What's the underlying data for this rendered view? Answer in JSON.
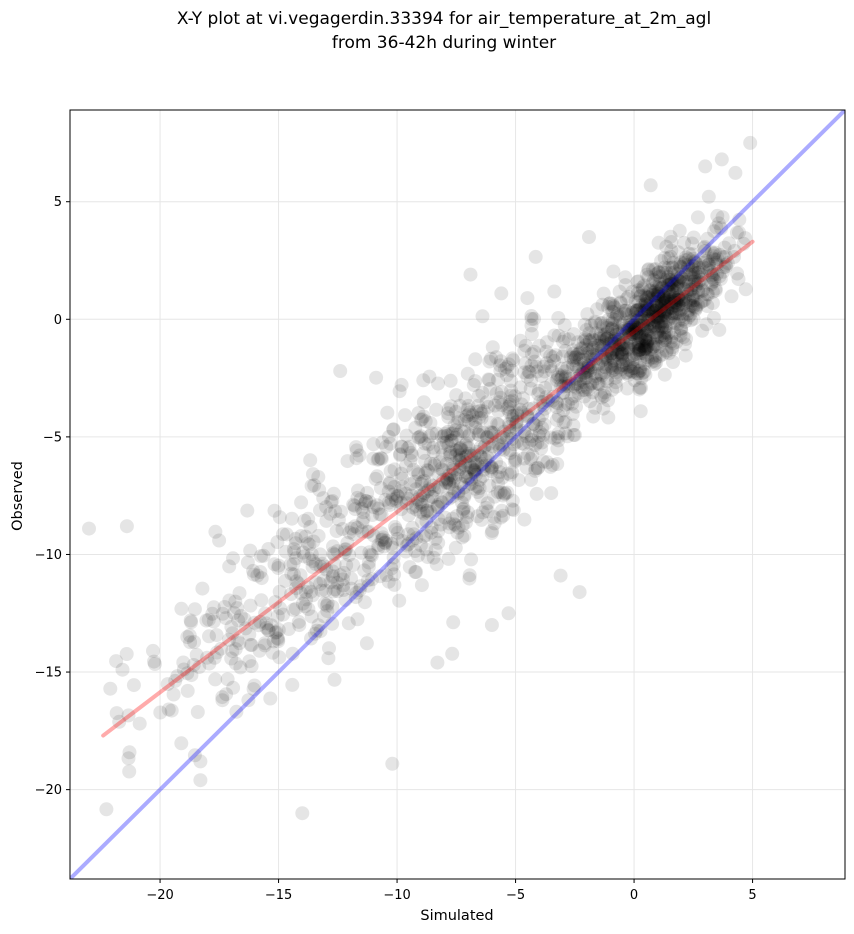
{
  "chart_data": {
    "type": "scatter",
    "title": [
      "X-Y plot at vi.vegagerdin.33394 for air_temperature_at_2m_agl",
      "from 36-42h during winter"
    ],
    "xlabel": "Simulated",
    "ylabel": "Observed",
    "xlim": [
      -23.8,
      8.9
    ],
    "ylim": [
      -23.8,
      8.9
    ],
    "xticks": [
      -20,
      -15,
      -10,
      -5,
      0,
      5
    ],
    "yticks": [
      -20,
      -15,
      -10,
      -5,
      0,
      5
    ],
    "xtick_labels": [
      "−20",
      "−15",
      "−10",
      "−5",
      "0",
      "5"
    ],
    "ytick_labels": [
      "−20",
      "−15",
      "−10",
      "−5",
      "0",
      "5"
    ],
    "grid": true,
    "point_color": "#000000",
    "point_alpha": 0.1,
    "point_count": 1800,
    "identity_line": {
      "color": "#0000ff",
      "alpha": 0.33,
      "from": [
        -23.8,
        -23.8
      ],
      "to": [
        8.9,
        8.9
      ]
    },
    "fit_line": {
      "color": "#ff0000",
      "alpha": 0.33,
      "from": [
        -22.4,
        -17.7
      ],
      "to": [
        5.0,
        3.3
      ]
    },
    "noted_points": [
      [
        -23.0,
        -8.9
      ],
      [
        -21.4,
        -8.8
      ],
      [
        -20.3,
        -14.1
      ],
      [
        -18.3,
        -19.6
      ],
      [
        -18.3,
        -18.8
      ],
      [
        -14.0,
        -21.0
      ],
      [
        -10.2,
        -18.9
      ],
      [
        -12.4,
        -2.2
      ],
      [
        -6.9,
        1.9
      ],
      [
        -5.6,
        1.1
      ],
      [
        -4.5,
        0.9
      ],
      [
        -1.9,
        3.5
      ],
      [
        0.7,
        5.7
      ],
      [
        3.0,
        6.5
      ],
      [
        3.7,
        6.8
      ],
      [
        4.9,
        7.5
      ],
      [
        -5.3,
        -12.5
      ],
      [
        -6.0,
        -13.0
      ],
      [
        -8.3,
        -14.6
      ],
      [
        -2.3,
        -11.6
      ],
      [
        -3.1,
        -10.9
      ]
    ]
  }
}
